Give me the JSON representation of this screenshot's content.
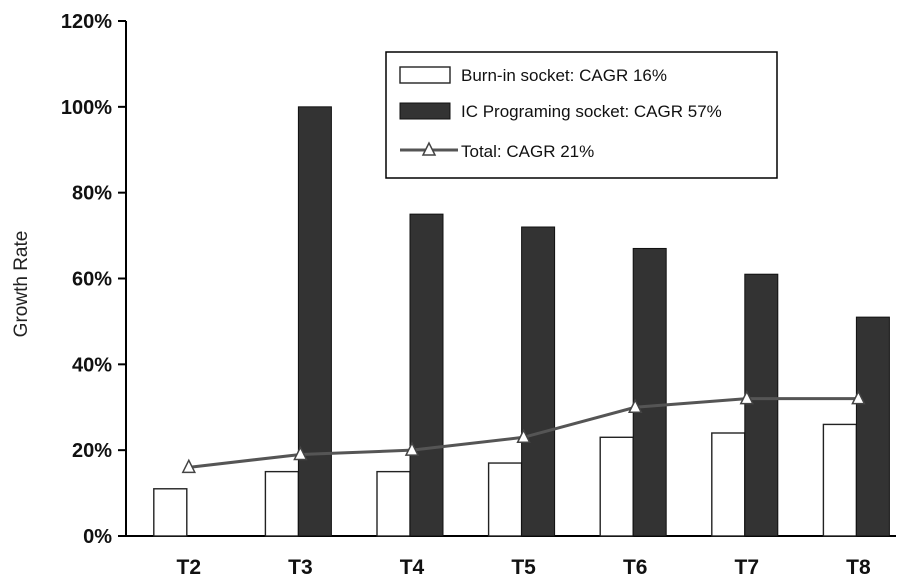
{
  "chart_data": {
    "type": "bar",
    "title": "",
    "xlabel": "",
    "ylabel": "Growth Rate",
    "categories": [
      "T2",
      "T3",
      "T4",
      "T5",
      "T6",
      "T7",
      "T8"
    ],
    "ylim": [
      0,
      120
    ],
    "yticks": [
      0,
      20,
      40,
      60,
      80,
      100,
      120
    ],
    "ytick_labels": [
      "0%",
      "20%",
      "40%",
      "60%",
      "80%",
      "100%",
      "120%"
    ],
    "grid": false,
    "legend_position": "top-right",
    "series": [
      {
        "name": "Burn-in socket: CAGR 16%",
        "kind": "bar",
        "color": "#ffffff",
        "values": [
          11,
          15,
          15,
          17,
          23,
          24,
          26
        ]
      },
      {
        "name": "IC Programing socket: CAGR 57%",
        "kind": "bar",
        "color": "#333333",
        "values": [
          null,
          100,
          75,
          72,
          67,
          61,
          51
        ]
      },
      {
        "name": "Total: CAGR 21%",
        "kind": "line",
        "marker": "triangle",
        "color": "#555555",
        "values": [
          16,
          19,
          20,
          23,
          30,
          32,
          32
        ]
      }
    ]
  }
}
